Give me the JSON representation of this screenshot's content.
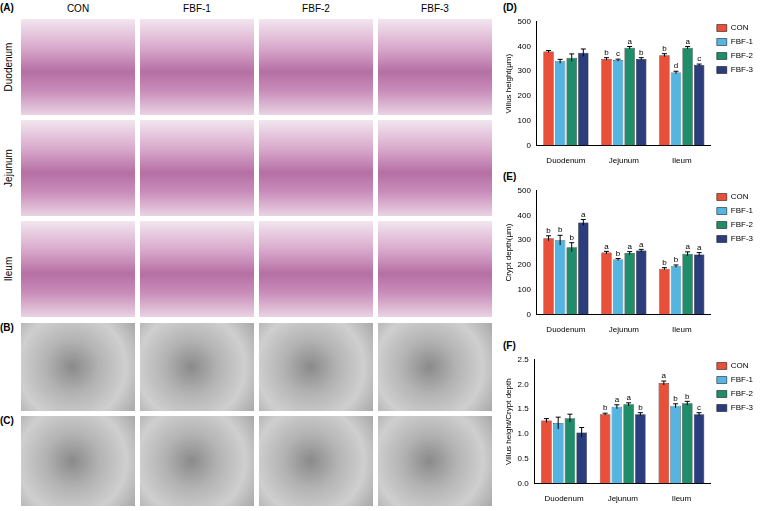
{
  "micrographs": {
    "letters": [
      "(A)",
      "(B)",
      "(C)"
    ],
    "columns": [
      "CON",
      "FBF-1",
      "FBF-2",
      "FBF-3"
    ],
    "rows": [
      "Duodenum",
      "Jejunum",
      "Ileum"
    ]
  },
  "chart_data": [
    {
      "type": "bar",
      "panel": "(D)",
      "y_label": "Villus height(μm)",
      "categories": [
        "Duodenum",
        "Jejunum",
        "Ileum"
      ],
      "series": [
        {
          "name": "CON",
          "color": "#e8503a",
          "values": [
            380,
            350,
            365
          ],
          "errors": [
            4,
            5,
            6
          ],
          "letters": [
            null,
            "b",
            "b"
          ]
        },
        {
          "name": "FBF-1",
          "color": "#56b4e0",
          "values": [
            340,
            345,
            295
          ],
          "errors": [
            8,
            4,
            5
          ],
          "letters": [
            null,
            "c",
            "d"
          ]
        },
        {
          "name": "FBF-2",
          "color": "#1f8c6a",
          "values": [
            355,
            395,
            395
          ],
          "errors": [
            15,
            5,
            5
          ],
          "letters": [
            null,
            "a",
            "a"
          ]
        },
        {
          "name": "FBF-3",
          "color": "#2b3d7c",
          "values": [
            375,
            350,
            325
          ],
          "errors": [
            15,
            5,
            4
          ],
          "letters": [
            null,
            "b",
            "c"
          ]
        }
      ],
      "ylim": [
        0,
        500
      ],
      "yticks": [
        0,
        100,
        200,
        300,
        400,
        500
      ],
      "grid": false,
      "legend": "top-right"
    },
    {
      "type": "bar",
      "panel": "(E)",
      "y_label": "Crypt depth(μm)",
      "categories": [
        "Duodenum",
        "Jejunum",
        "Ileum"
      ],
      "series": [
        {
          "name": "CON",
          "color": "#e8503a",
          "values": [
            308,
            250,
            185
          ],
          "errors": [
            10,
            5,
            4
          ],
          "letters": [
            "b",
            "a",
            "b"
          ]
        },
        {
          "name": "FBF-1",
          "color": "#56b4e0",
          "values": [
            300,
            222,
            195
          ],
          "errors": [
            20,
            4,
            5
          ],
          "letters": [
            "b",
            "b",
            "b"
          ]
        },
        {
          "name": "FBF-2",
          "color": "#1f8c6a",
          "values": [
            272,
            248,
            245
          ],
          "errors": [
            18,
            6,
            8
          ],
          "letters": [
            "b",
            "a",
            "a"
          ]
        },
        {
          "name": "FBF-3",
          "color": "#2b3d7c",
          "values": [
            372,
            258,
            242
          ],
          "errors": [
            12,
            5,
            8
          ],
          "letters": [
            "a",
            "a",
            "a"
          ]
        }
      ],
      "ylim": [
        0,
        500
      ],
      "yticks": [
        0,
        100,
        200,
        300,
        400,
        500
      ],
      "grid": false,
      "legend": "top-right"
    },
    {
      "type": "bar",
      "panel": "(F)",
      "y_label": "Villus height/Crypt depth",
      "categories": [
        "Duodenum",
        "Jejunum",
        "Ileum"
      ],
      "series": [
        {
          "name": "CON",
          "color": "#e8503a",
          "values": [
            1.27,
            1.4,
            2.03
          ],
          "errors": [
            0.04,
            0.02,
            0.04
          ],
          "letters": [
            null,
            "b",
            "a"
          ]
        },
        {
          "name": "FBF-1",
          "color": "#56b4e0",
          "values": [
            1.22,
            1.55,
            1.57
          ],
          "errors": [
            0.12,
            0.04,
            0.04
          ],
          "letters": [
            null,
            "a",
            "b"
          ]
        },
        {
          "name": "FBF-2",
          "color": "#1f8c6a",
          "values": [
            1.32,
            1.6,
            1.62
          ],
          "errors": [
            0.08,
            0.03,
            0.04
          ],
          "letters": [
            null,
            "a",
            "b"
          ]
        },
        {
          "name": "FBF-3",
          "color": "#2b3d7c",
          "values": [
            1.03,
            1.4,
            1.4
          ],
          "errors": [
            0.1,
            0.03,
            0.03
          ],
          "letters": [
            null,
            "b",
            "c"
          ]
        }
      ],
      "ylim": [
        0,
        2.5
      ],
      "yticks": [
        {
          "value": 0,
          "label": "0.0"
        },
        {
          "value": 0.5,
          "label": "0.5"
        },
        {
          "value": 1,
          "label": "1.0"
        },
        {
          "value": 1.5,
          "label": "1.5"
        },
        {
          "value": 2,
          "label": "2.0"
        },
        {
          "value": 2.5,
          "label": "2.5"
        }
      ],
      "grid": false,
      "legend": "top-right"
    }
  ]
}
